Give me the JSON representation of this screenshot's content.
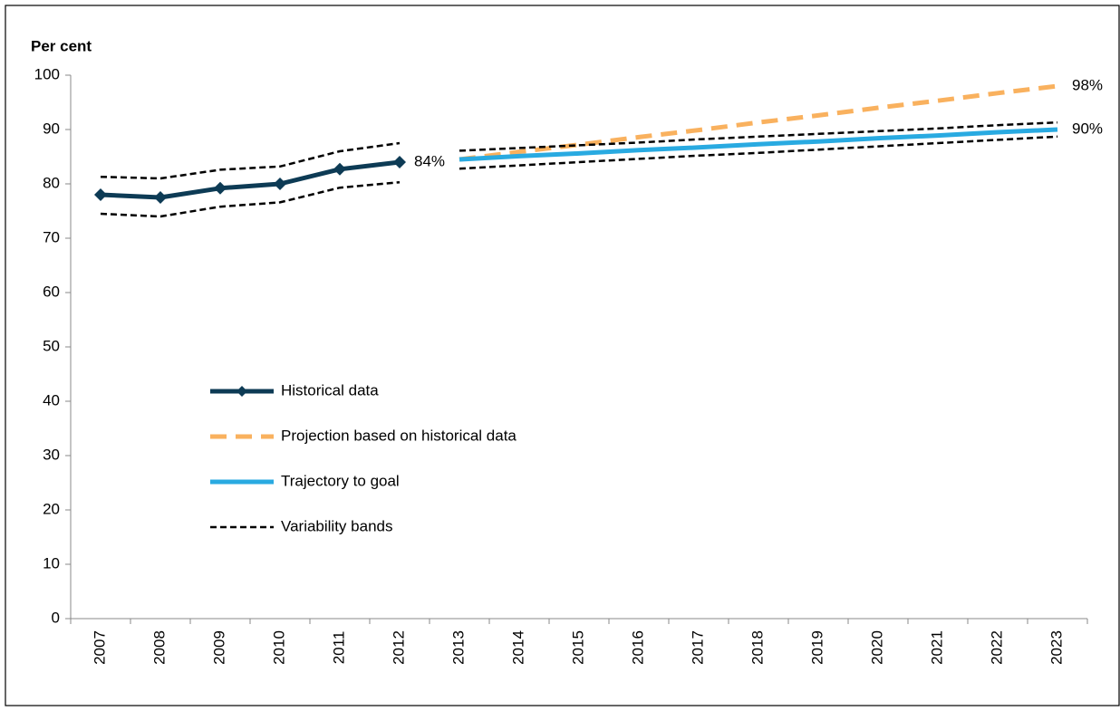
{
  "chart_data": {
    "type": "line",
    "y_label": "Per cent",
    "categories": [
      "2007",
      "2008",
      "2009",
      "2010",
      "2011",
      "2012",
      "2013",
      "2014",
      "2015",
      "2016",
      "2017",
      "2018",
      "2019",
      "2020",
      "2021",
      "2022",
      "2023"
    ],
    "ylim": [
      0,
      100
    ],
    "yticks": [
      0,
      10,
      20,
      30,
      40,
      50,
      60,
      70,
      80,
      90,
      100
    ],
    "legend": "lower-left",
    "series": [
      {
        "name": "Historical data",
        "color": "#0d3b55",
        "style": "solid",
        "marker": "diamond",
        "values": [
          78,
          77.5,
          79.2,
          80,
          82.7,
          84,
          null,
          null,
          null,
          null,
          null,
          null,
          null,
          null,
          null,
          null,
          null
        ],
        "value_labels": [
          null,
          null,
          null,
          null,
          null,
          "84%",
          null,
          null,
          null,
          null,
          null,
          null,
          null,
          null,
          null,
          null,
          null
        ]
      },
      {
        "name": "Projection based on historical data",
        "color": "#f9b15e",
        "style": "dashed",
        "values": [
          null,
          null,
          null,
          null,
          null,
          null,
          84.5,
          85.9,
          87.2,
          88.6,
          89.9,
          91.3,
          92.6,
          94.0,
          95.3,
          96.7,
          98
        ],
        "value_labels": [
          null,
          null,
          null,
          null,
          null,
          null,
          null,
          null,
          null,
          null,
          null,
          null,
          null,
          null,
          null,
          null,
          "98%"
        ]
      },
      {
        "name": "Trajectory to goal",
        "color": "#29aae1",
        "style": "solid",
        "values": [
          null,
          null,
          null,
          null,
          null,
          null,
          84.5,
          85.1,
          85.6,
          86.2,
          86.7,
          87.3,
          87.8,
          88.4,
          88.9,
          89.5,
          90
        ],
        "value_labels": [
          null,
          null,
          null,
          null,
          null,
          null,
          null,
          null,
          null,
          null,
          null,
          null,
          null,
          null,
          null,
          null,
          "90%"
        ]
      },
      {
        "name": "Variability bands",
        "color": "#000000",
        "style": "dotted",
        "pieces": [
          {
            "upper": [
              81.3,
              81,
              82.6,
              83.2,
              86,
              87.5,
              null,
              null,
              null,
              null,
              null,
              null,
              null,
              null,
              null,
              null,
              null
            ],
            "lower": [
              74.5,
              74,
              75.8,
              76.6,
              79.3,
              80.3,
              null,
              null,
              null,
              null,
              null,
              null,
              null,
              null,
              null,
              null,
              null
            ]
          },
          {
            "upper": [
              null,
              null,
              null,
              null,
              null,
              null,
              86.1,
              86.6,
              87.1,
              87.6,
              88.2,
              88.7,
              89.2,
              89.7,
              90.2,
              90.8,
              91.3
            ],
            "lower": [
              null,
              null,
              null,
              null,
              null,
              null,
              82.8,
              83.4,
              84.0,
              84.6,
              85.2,
              85.7,
              86.3,
              86.9,
              87.5,
              88.1,
              88.7
            ]
          }
        ]
      }
    ]
  }
}
